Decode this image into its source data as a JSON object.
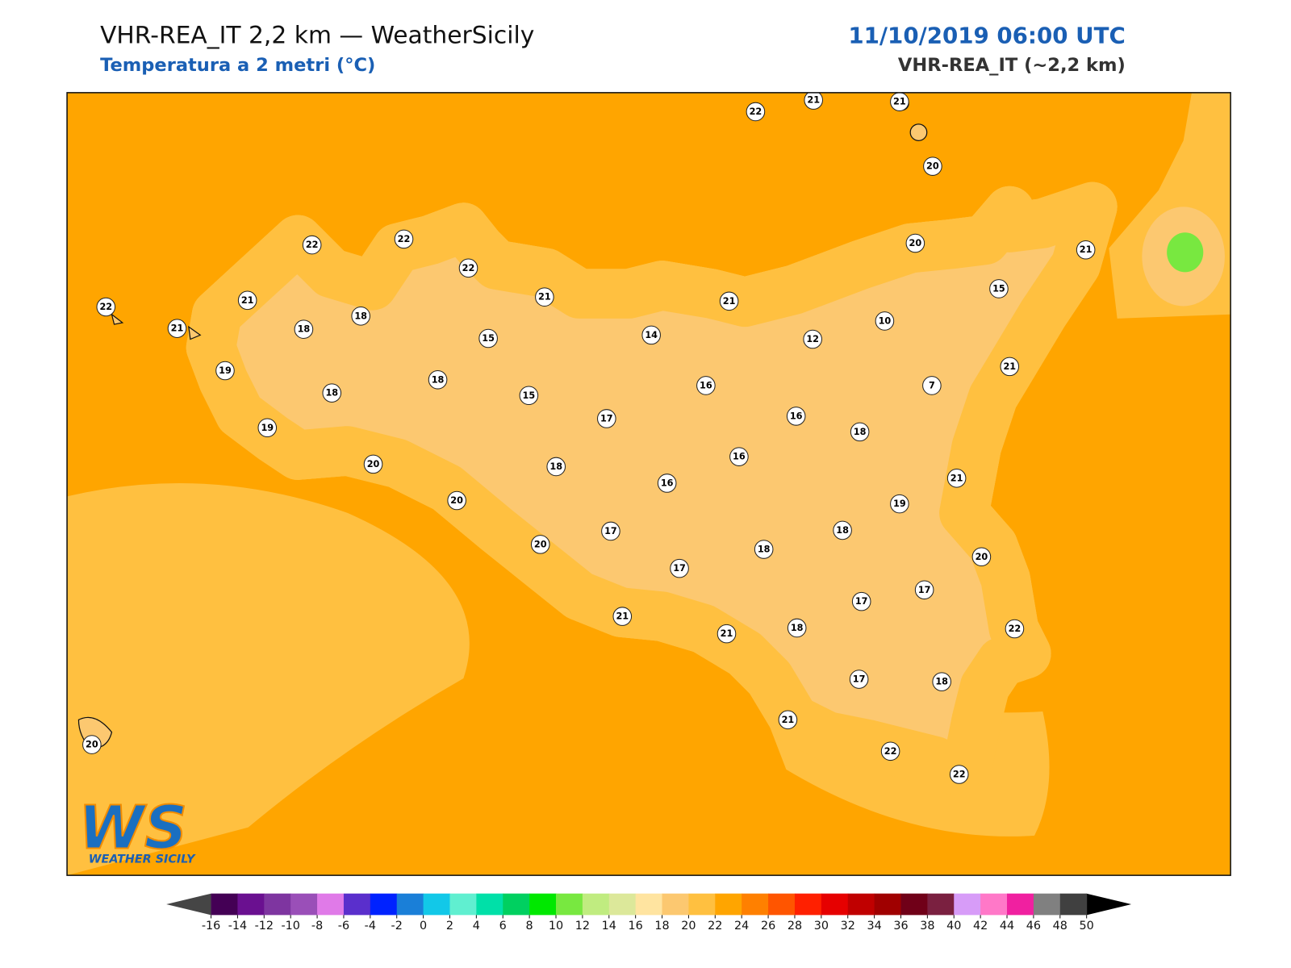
{
  "header": {
    "title": "VHR-REA_IT 2,2 km — WeatherSicily",
    "subtitle": "Temperatura a 2 metri (°C)",
    "datetime": "11/10/2019 06:00 UTC",
    "model": "VHR-REA_IT (~2,2 km)"
  },
  "stations": [
    22,
    21,
    21,
    20,
    22,
    22,
    22,
    22,
    21,
    21,
    18,
    18,
    21,
    15,
    21,
    14,
    20,
    15,
    21,
    10,
    12,
    19,
    18,
    18,
    15,
    16,
    7,
    21,
    19,
    17,
    16,
    18,
    20,
    18,
    16,
    16,
    21,
    20,
    19,
    17,
    18,
    20,
    18,
    20,
    17,
    17,
    17,
    21,
    21,
    18,
    22,
    17,
    18,
    21,
    22,
    22,
    20
  ],
  "colorbar": {
    "ticks": [
      -16,
      -14,
      -12,
      -10,
      -8,
      -6,
      -4,
      -2,
      0,
      2,
      4,
      6,
      8,
      10,
      12,
      14,
      16,
      18,
      20,
      22,
      24,
      26,
      28,
      30,
      32,
      34,
      36,
      38,
      40,
      42,
      44,
      46,
      48,
      50
    ],
    "colors": [
      "#440055",
      "#6a1090",
      "#7e35a0",
      "#9a4fb8",
      "#e07ae8",
      "#5a2fcc",
      "#0022ff",
      "#1a7fd8",
      "#12c8e8",
      "#60efd0",
      "#00e0a8",
      "#00d060",
      "#00e800",
      "#78e840",
      "#c0ec80",
      "#dce89a",
      "#ffe4a0",
      "#fcc870",
      "#ffc040",
      "#ffa500",
      "#ff8000",
      "#ff5500",
      "#ff2000",
      "#e60000",
      "#c00000",
      "#a00000",
      "#700018",
      "#7a2040",
      "#d79cf8",
      "#ff78c8",
      "#f020a0",
      "#808080",
      "#404040"
    ],
    "under_color": "#454545",
    "over_color": "#000000"
  },
  "logo": {
    "mark": "WS",
    "text": "WEATHER SICILY"
  }
}
